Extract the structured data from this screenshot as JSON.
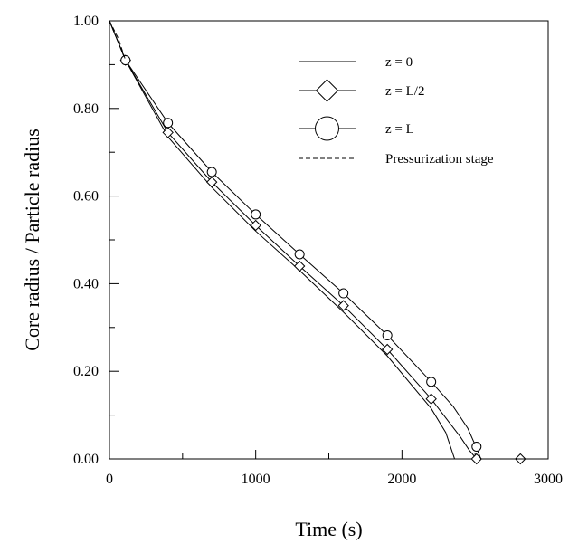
{
  "chart_data": {
    "type": "line",
    "xlabel": "Time (s)",
    "ylabel": "Core radius / Particle radius",
    "xlim": [
      0,
      3000
    ],
    "ylim": [
      0,
      1
    ],
    "x_ticks": [
      0,
      1000,
      2000,
      3000
    ],
    "x_tick_labels": [
      "0",
      "1000",
      "2000",
      "3000"
    ],
    "y_ticks": [
      0,
      0.2,
      0.4,
      0.6,
      0.8,
      1.0
    ],
    "y_tick_labels": [
      "0.00",
      "0.20",
      "0.40",
      "0.60",
      "0.80",
      "1.00"
    ],
    "legend_position": "top-right",
    "grid": false,
    "series": [
      {
        "name": "z = 0",
        "marker": "none",
        "line_style": "solid",
        "x": [
          0,
          110,
          400,
          700,
          1000,
          1300,
          1600,
          1900,
          2200,
          2300,
          2360,
          3000
        ],
        "y": [
          1.0,
          0.91,
          0.735,
          0.62,
          0.52,
          0.43,
          0.335,
          0.235,
          0.115,
          0.06,
          0.0,
          0.0
        ]
      },
      {
        "name": "z = L/2",
        "marker": "diamond",
        "line_style": "solid",
        "x": [
          0,
          110,
          400,
          700,
          1000,
          1300,
          1600,
          1900,
          2200,
          2400,
          2460,
          2510,
          2800,
          3000
        ],
        "y": [
          1.0,
          0.91,
          0.745,
          0.632,
          0.533,
          0.44,
          0.35,
          0.25,
          0.137,
          0.05,
          0.02,
          0.0,
          0.0,
          0.0
        ],
        "marker_points": [
          [
            110,
            0.91
          ],
          [
            400,
            0.745
          ],
          [
            700,
            0.632
          ],
          [
            1000,
            0.533
          ],
          [
            1300,
            0.44
          ],
          [
            1600,
            0.35
          ],
          [
            1900,
            0.25
          ],
          [
            2200,
            0.137
          ],
          [
            2510,
            0.0
          ],
          [
            2810,
            0.0
          ]
        ]
      },
      {
        "name": "z = L",
        "marker": "circle",
        "line_style": "solid",
        "x": [
          0,
          110,
          400,
          700,
          1000,
          1300,
          1600,
          1900,
          2200,
          2350,
          2450,
          2510,
          2540,
          3000
        ],
        "y": [
          1.0,
          0.91,
          0.767,
          0.655,
          0.558,
          0.467,
          0.378,
          0.282,
          0.176,
          0.12,
          0.07,
          0.025,
          0.0,
          0.0
        ],
        "marker_points": [
          [
            110,
            0.91
          ],
          [
            400,
            0.767
          ],
          [
            700,
            0.655
          ],
          [
            1000,
            0.558
          ],
          [
            1300,
            0.467
          ],
          [
            1600,
            0.378
          ],
          [
            1900,
            0.282
          ],
          [
            2200,
            0.176
          ],
          [
            2510,
            0.028
          ]
        ]
      },
      {
        "name": "Pressurization stage",
        "marker": "none",
        "line_style": "dashed",
        "x": [
          0,
          60,
          110
        ],
        "y": [
          1.0,
          0.96,
          0.91
        ]
      }
    ]
  }
}
